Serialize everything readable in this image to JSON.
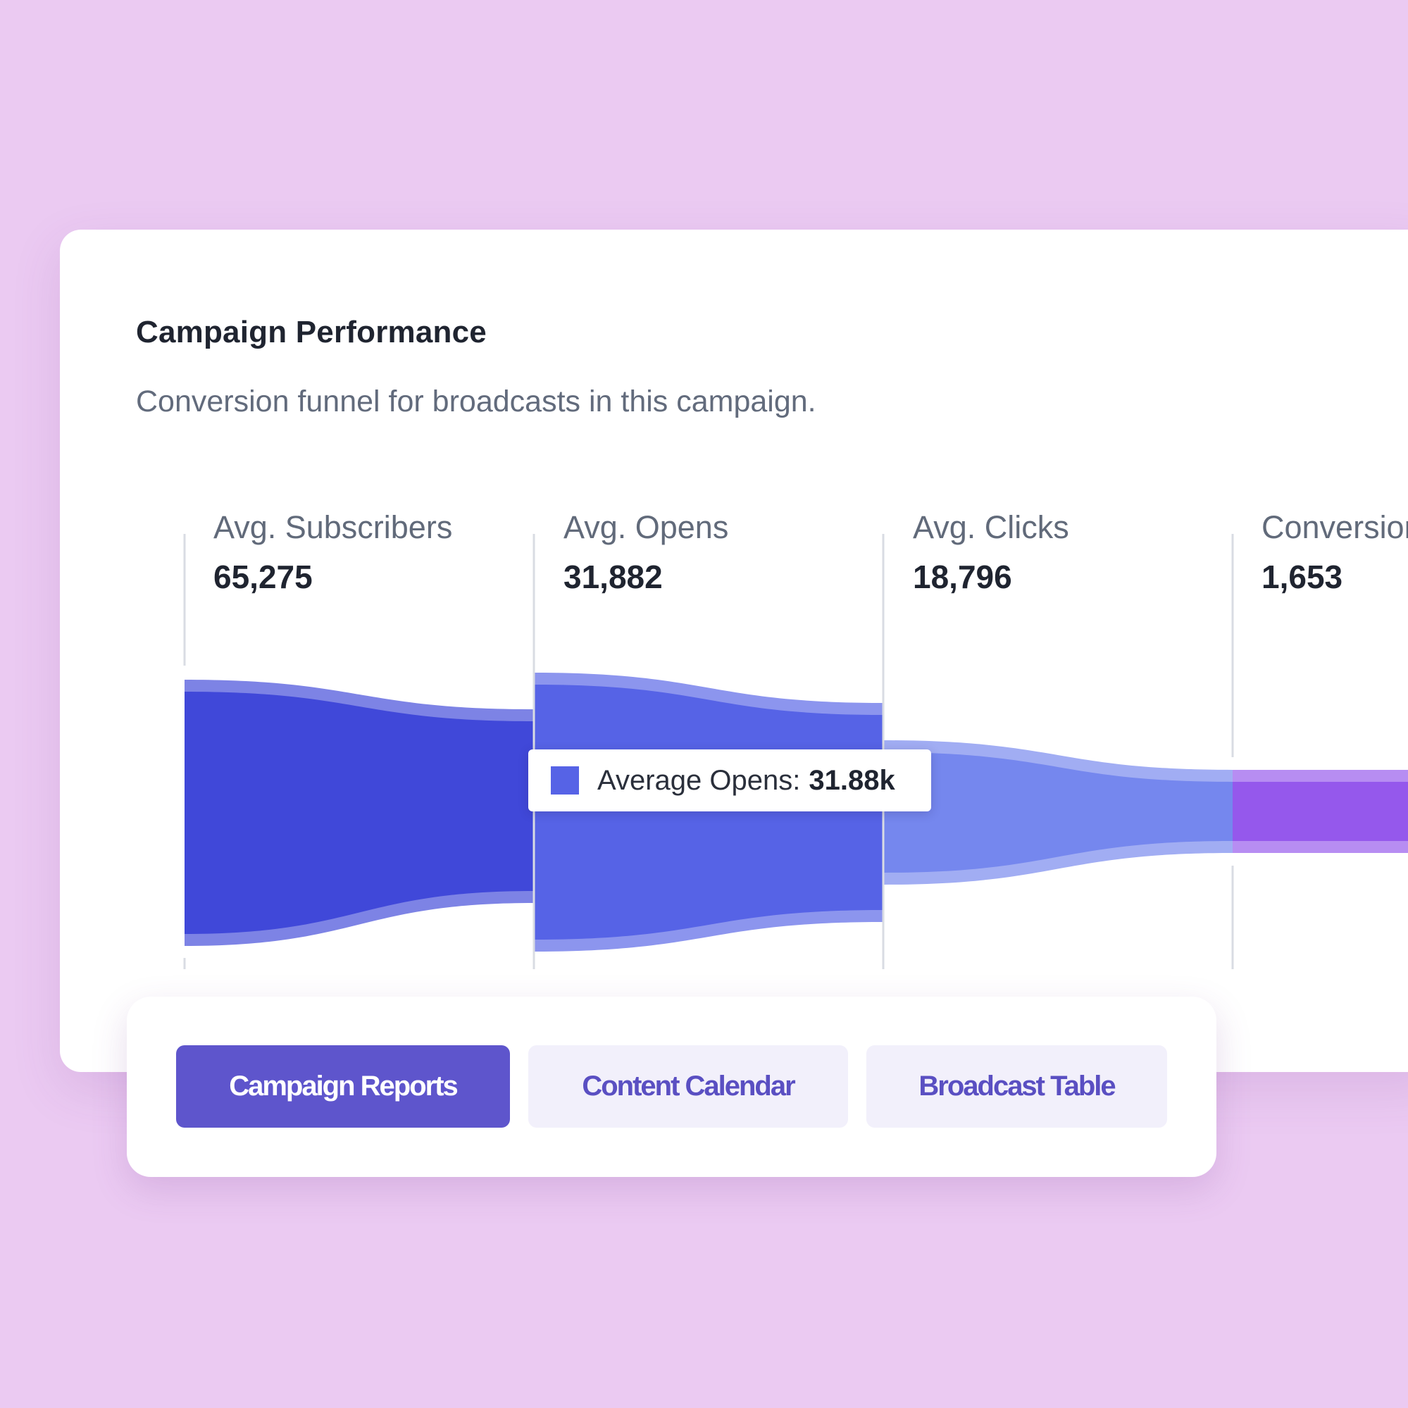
{
  "card": {
    "title": "Campaign Performance",
    "subtitle": "Conversion funnel for broadcasts in this campaign."
  },
  "chart_data": {
    "type": "area",
    "stages": [
      {
        "label": "Avg. Subscribers",
        "value_label": "65,275",
        "value": 65275
      },
      {
        "label": "Avg. Opens",
        "value_label": "31,882",
        "value": 31882
      },
      {
        "label": "Avg. Clicks",
        "value_label": "18,796",
        "value": 18796
      },
      {
        "label": "Conversions",
        "value_label": "1,653",
        "value": 1653
      }
    ],
    "colors": {
      "subscribers": "#4048d9",
      "opens": "#5663e6",
      "clicks": "#7587ee",
      "conversions": "#9558ec"
    }
  },
  "tooltip": {
    "label": "Average Opens:",
    "value": "31.88k",
    "swatch_color": "#5663e6"
  },
  "tabs": {
    "campaign_reports": "Campaign Reports",
    "content_calendar": "Content Calendar",
    "broadcast_table": "Broadcast Table",
    "active": "campaign_reports"
  }
}
